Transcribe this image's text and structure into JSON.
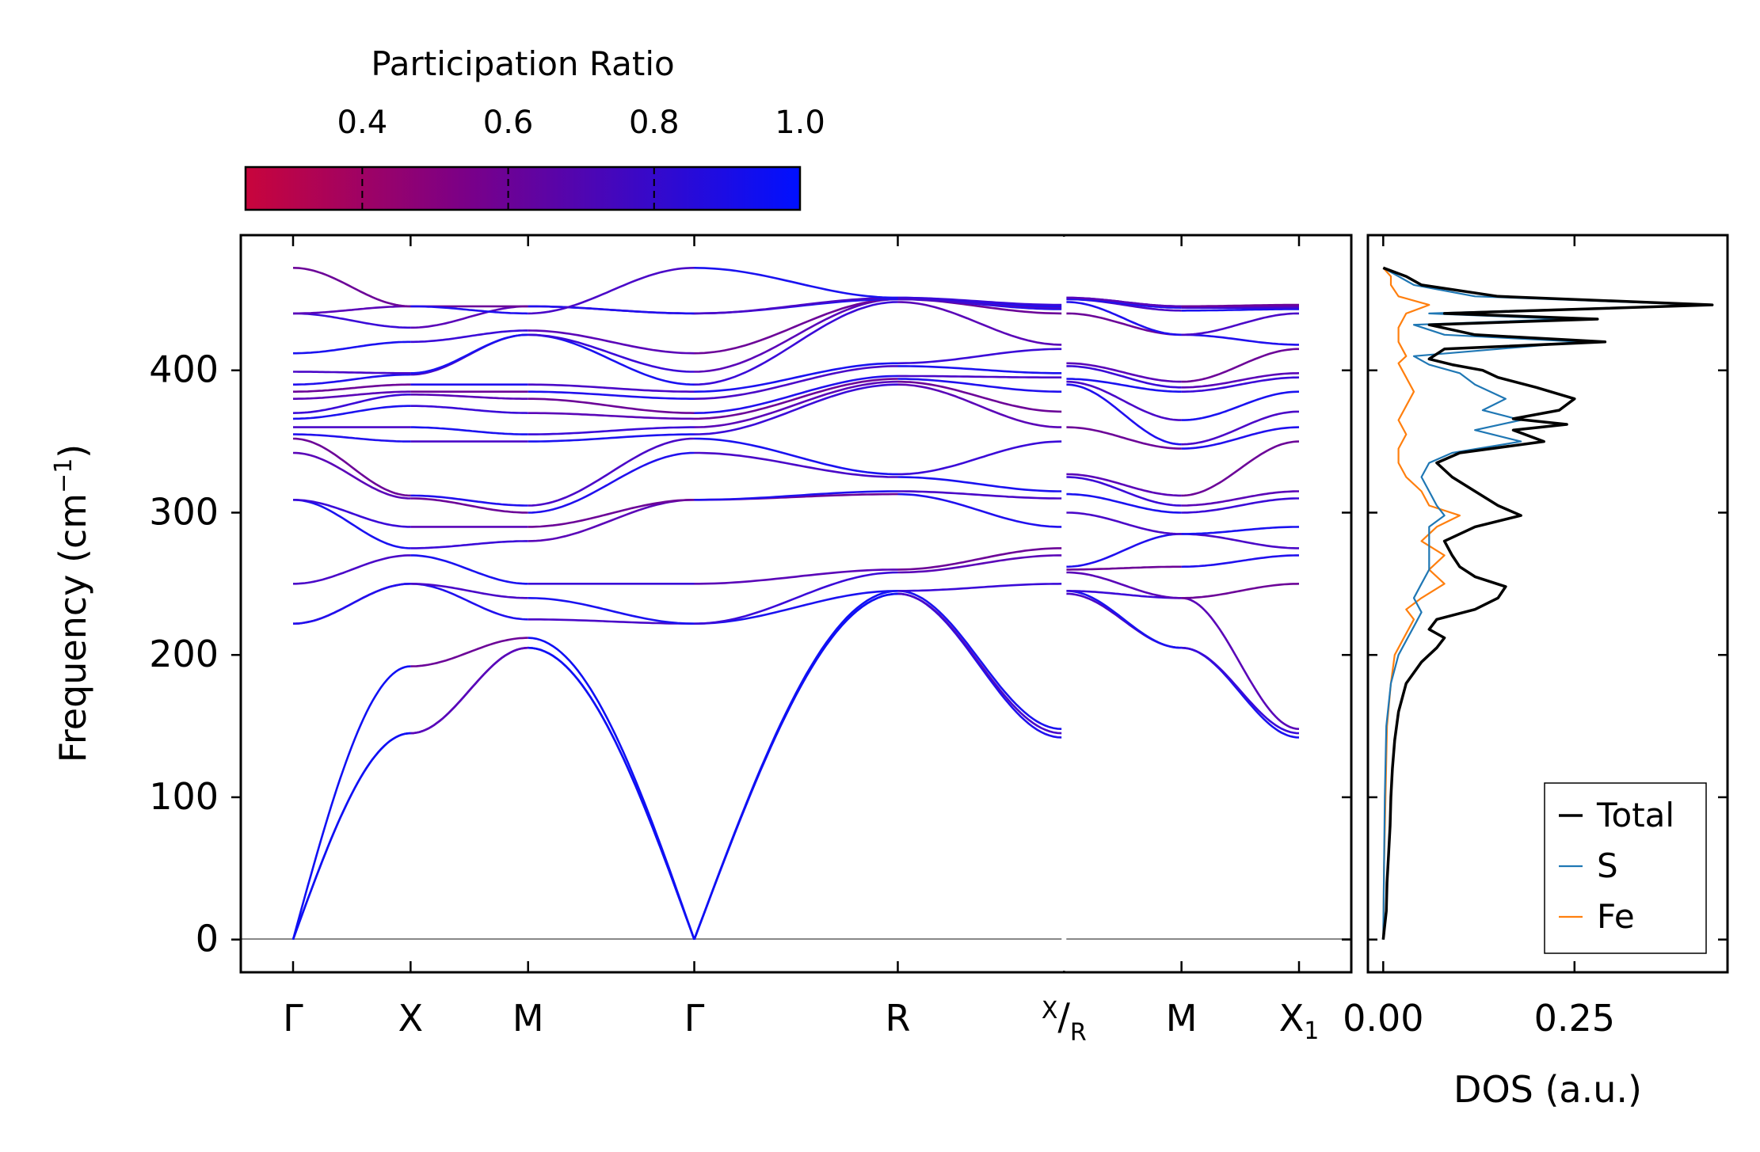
{
  "colorbar": {
    "title": "Participation Ratio",
    "ticks": [
      "0.4",
      "0.6",
      "0.8",
      "1.0"
    ],
    "tick_values": [
      0.4,
      0.6,
      0.8,
      1.0
    ],
    "range": [
      0.24,
      1.0
    ],
    "color_low": "#c8053c",
    "color_mid": "#7a0088",
    "color_high": "#0010ff"
  },
  "chart_data": [
    {
      "type": "line",
      "name": "phonon-dispersion",
      "ylabel": "Frequency (cm",
      "ylabel_sup": "−1",
      "ylabel_close": ")",
      "ylim": [
        -23,
        495
      ],
      "yticks": [
        0,
        100,
        200,
        300,
        400
      ],
      "ytick_labels": [
        "0",
        "100",
        "200",
        "300",
        "400"
      ],
      "kpath": [
        {
          "label": "Γ",
          "pos": 0.0
        },
        {
          "label": "X",
          "pos": 0.5
        },
        {
          "label": "M",
          "pos": 1.0
        },
        {
          "label": "Γ",
          "pos": 1.7071
        },
        {
          "label": "R",
          "pos": 2.5731
        },
        {
          "label": "X/R",
          "pos": 3.2802,
          "top": "X",
          "bottom": "R"
        },
        {
          "label": "M",
          "pos": 3.7802
        },
        {
          "label": "X₁",
          "pos": 4.2802,
          "main": "X",
          "sub": "1"
        }
      ],
      "segments": [
        {
          "from": 0,
          "to": 1,
          "start": [
            0,
            0,
            0,
            222,
            222,
            250,
            309,
            309,
            342,
            352,
            355,
            360,
            366,
            370,
            380,
            385,
            390,
            399,
            412,
            440,
            440,
            472
          ],
          "end": [
            145,
            145,
            192,
            250,
            250,
            270,
            275,
            290,
            310,
            312,
            350,
            360,
            375,
            383,
            385,
            390,
            397,
            398,
            420,
            430,
            445,
            445
          ]
        },
        {
          "from": 1,
          "to": 2,
          "start": [
            145,
            145,
            192,
            250,
            250,
            270,
            275,
            290,
            310,
            312,
            350,
            360,
            375,
            383,
            385,
            390,
            397,
            398,
            420,
            430,
            445,
            445
          ],
          "end": [
            205,
            205,
            212,
            225,
            240,
            250,
            280,
            290,
            300,
            305,
            350,
            355,
            370,
            380,
            385,
            390,
            425,
            425,
            428,
            445,
            445,
            440
          ]
        },
        {
          "from": 2,
          "to": 3,
          "start": [
            205,
            205,
            212,
            225,
            240,
            250,
            280,
            290,
            300,
            305,
            350,
            355,
            370,
            380,
            385,
            390,
            425,
            425,
            428,
            445,
            445,
            440
          ],
          "end": [
            0,
            0,
            0,
            222,
            222,
            250,
            309,
            309,
            342,
            352,
            355,
            360,
            366,
            370,
            380,
            385,
            390,
            399,
            412,
            440,
            440,
            472
          ]
        },
        {
          "from": 3,
          "to": 4,
          "start": [
            0,
            0,
            0,
            222,
            222,
            250,
            309,
            309,
            342,
            352,
            355,
            360,
            366,
            370,
            380,
            385,
            390,
            399,
            412,
            440,
            440,
            472
          ],
          "end": [
            243,
            243,
            245,
            245,
            258,
            260,
            313,
            315,
            325,
            327,
            390,
            392,
            394,
            396,
            403,
            405,
            448,
            450,
            450,
            450,
            451,
            451
          ]
        },
        {
          "from": 4,
          "to": 5,
          "start": [
            243,
            243,
            245,
            245,
            258,
            260,
            313,
            315,
            325,
            327,
            390,
            392,
            394,
            396,
            403,
            405,
            448,
            450,
            450,
            450,
            451,
            451
          ],
          "end": [
            142,
            145,
            148,
            250,
            270,
            275,
            290,
            310,
            315,
            350,
            360,
            371,
            385,
            395,
            398,
            415,
            418,
            440,
            443,
            444,
            445,
            446
          ]
        },
        {
          "from": 5,
          "to": 6,
          "start": [
            243,
            245,
            245,
            258,
            260,
            262,
            300,
            313,
            325,
            327,
            360,
            390,
            392,
            394,
            403,
            405,
            440,
            448,
            450,
            450,
            451,
            451
          ],
          "end": [
            205,
            205,
            240,
            240,
            262,
            285,
            285,
            300,
            305,
            312,
            345,
            348,
            365,
            385,
            388,
            392,
            425,
            425,
            442,
            444,
            445,
            445
          ]
        },
        {
          "from": 6,
          "to": 7,
          "start": [
            205,
            205,
            240,
            240,
            262,
            285,
            285,
            300,
            305,
            312,
            345,
            348,
            365,
            385,
            388,
            392,
            425,
            425,
            442,
            444,
            445,
            445
          ],
          "end": [
            142,
            145,
            148,
            250,
            270,
            275,
            290,
            310,
            315,
            350,
            360,
            371,
            385,
            395,
            398,
            415,
            418,
            440,
            443,
            444,
            445,
            446
          ]
        }
      ]
    },
    {
      "type": "line",
      "name": "phonon-dos",
      "xlabel": "DOS (a.u.)",
      "xlim": [
        -0.02,
        0.45
      ],
      "xticks": [
        0.0,
        0.25
      ],
      "xtick_labels": [
        "0.00",
        "0.25"
      ],
      "ylim": [
        -23,
        495
      ],
      "legend_location": "lower-right",
      "series": [
        {
          "name": "Total",
          "color": "#000000",
          "freq": [
            0,
            20,
            40,
            60,
            80,
            100,
            120,
            140,
            160,
            180,
            195,
            205,
            212,
            218,
            225,
            232,
            240,
            248,
            255,
            262,
            270,
            280,
            290,
            298,
            305,
            315,
            325,
            335,
            342,
            350,
            358,
            362,
            366,
            372,
            380,
            388,
            395,
            400,
            404,
            408,
            415,
            420,
            425,
            432,
            436,
            440,
            446,
            452,
            460,
            466,
            472
          ],
          "dos": [
            0.0,
            0.004,
            0.005,
            0.007,
            0.009,
            0.01,
            0.012,
            0.015,
            0.02,
            0.03,
            0.05,
            0.07,
            0.08,
            0.06,
            0.07,
            0.12,
            0.15,
            0.16,
            0.12,
            0.1,
            0.09,
            0.08,
            0.12,
            0.18,
            0.15,
            0.12,
            0.09,
            0.07,
            0.1,
            0.21,
            0.17,
            0.24,
            0.17,
            0.23,
            0.25,
            0.2,
            0.15,
            0.13,
            0.09,
            0.06,
            0.08,
            0.29,
            0.12,
            0.06,
            0.28,
            0.08,
            0.43,
            0.15,
            0.05,
            0.03,
            0.0
          ]
        },
        {
          "name": "S",
          "color": "#1f77b4",
          "freq": [
            0,
            50,
            100,
            150,
            180,
            200,
            210,
            220,
            230,
            240,
            250,
            260,
            270,
            280,
            290,
            298,
            305,
            315,
            325,
            335,
            342,
            350,
            358,
            365,
            372,
            380,
            390,
            398,
            404,
            410,
            420,
            425,
            432,
            436,
            440,
            446,
            452,
            460,
            466,
            472
          ],
          "dos": [
            0.0,
            0.001,
            0.002,
            0.004,
            0.01,
            0.02,
            0.03,
            0.04,
            0.05,
            0.04,
            0.05,
            0.06,
            0.06,
            0.06,
            0.06,
            0.08,
            0.07,
            0.06,
            0.05,
            0.06,
            0.09,
            0.18,
            0.12,
            0.18,
            0.13,
            0.16,
            0.12,
            0.1,
            0.06,
            0.04,
            0.26,
            0.08,
            0.04,
            0.24,
            0.06,
            0.42,
            0.12,
            0.04,
            0.02,
            0.0
          ]
        },
        {
          "name": "Fe",
          "color": "#ff7f0e",
          "freq": [
            0,
            50,
            100,
            150,
            180,
            200,
            215,
            225,
            232,
            240,
            250,
            260,
            270,
            280,
            290,
            298,
            305,
            315,
            325,
            335,
            345,
            355,
            365,
            375,
            385,
            395,
            405,
            410,
            420,
            430,
            440,
            446,
            452,
            460,
            466,
            472
          ],
          "dos": [
            0.0,
            0.001,
            0.003,
            0.005,
            0.01,
            0.015,
            0.03,
            0.04,
            0.03,
            0.05,
            0.08,
            0.06,
            0.08,
            0.05,
            0.07,
            0.1,
            0.06,
            0.05,
            0.03,
            0.02,
            0.02,
            0.03,
            0.02,
            0.03,
            0.04,
            0.03,
            0.02,
            0.03,
            0.02,
            0.02,
            0.03,
            0.06,
            0.02,
            0.01,
            0.01,
            0.0
          ]
        }
      ]
    }
  ]
}
